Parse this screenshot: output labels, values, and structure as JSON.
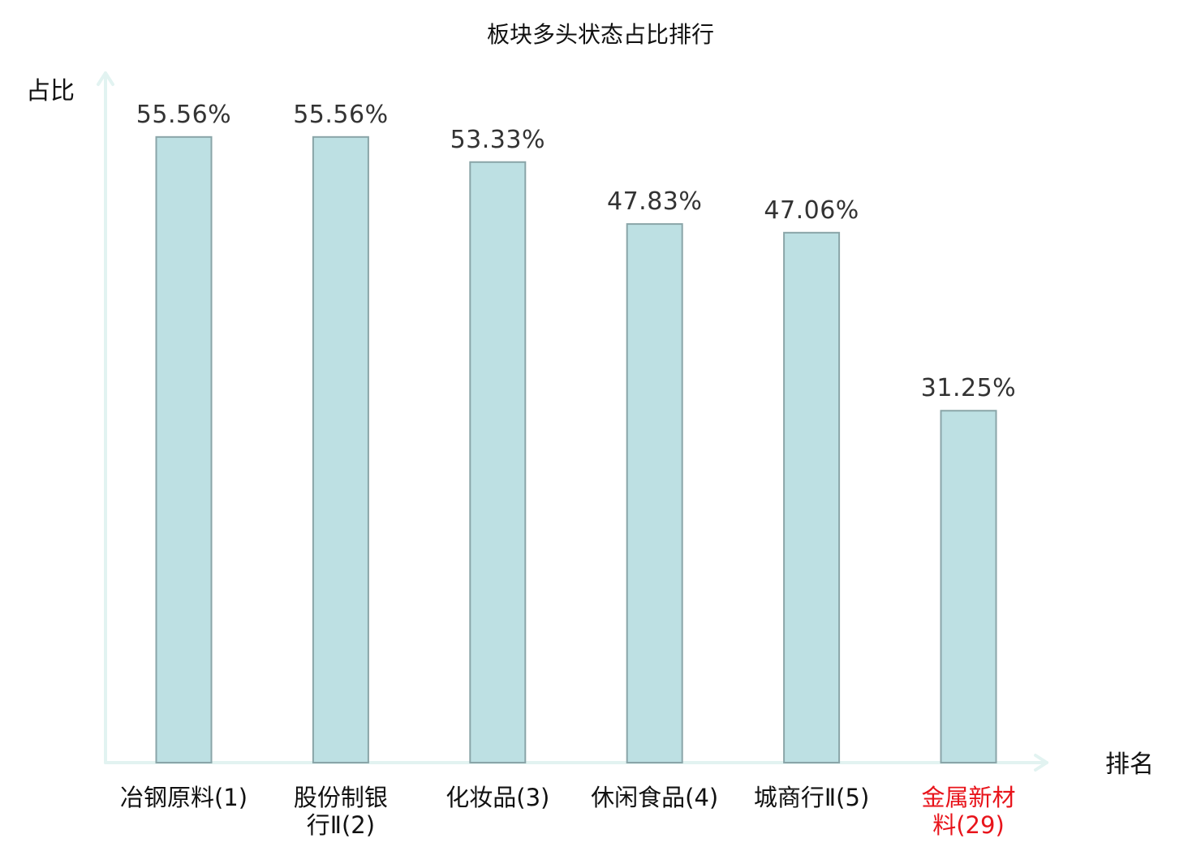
{
  "chart_data": {
    "type": "bar",
    "title": "板块多头状态占比排行",
    "ylabel": "占比",
    "xlabel": "排名",
    "ylim": [
      0,
      62
    ],
    "grid": false,
    "legend": "none",
    "categories": [
      "冶钢原料(1)",
      "股份制银行Ⅱ(2)",
      "化妆品(3)",
      "休闲食品(4)",
      "城商行Ⅱ(5)",
      "金属新材料(29)"
    ],
    "category_lines": [
      [
        "冶钢原料(1)"
      ],
      [
        "股份制银",
        "行Ⅱ(2)"
      ],
      [
        "化妆品(3)"
      ],
      [
        "休闲食品(4)"
      ],
      [
        "城商行Ⅱ(5)"
      ],
      [
        "金属新材",
        "料(29)"
      ]
    ],
    "values": [
      55.56,
      55.56,
      53.33,
      47.83,
      47.06,
      31.25
    ],
    "value_labels": [
      "55.56%",
      "55.56%",
      "53.33%",
      "47.83%",
      "47.06%",
      "31.25%"
    ],
    "highlight_index": 5
  },
  "colors": {
    "bar_fill": "#bde0e3",
    "bar_stroke": "#8aa5a8",
    "axis": "#e2f3f1",
    "highlight_text": "#e8141b",
    "normal_text": "#111111",
    "value_text": "#333333"
  }
}
